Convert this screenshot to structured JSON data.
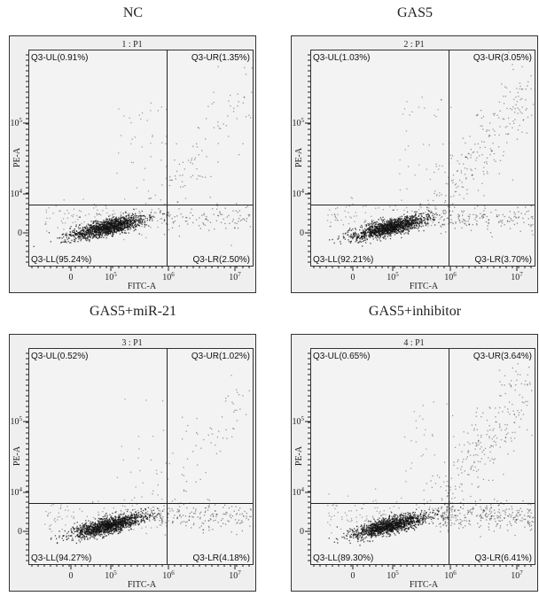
{
  "chart_data": [
    {
      "type": "scatter",
      "title": "NC",
      "subtitle": "1 : P1",
      "xlabel": "FITC-A",
      "ylabel": "PE-A",
      "x_tick_labels": [
        "0",
        "10^5",
        "10^6",
        "10^7"
      ],
      "y_tick_labels": [
        "0",
        "10^4",
        "10^5"
      ],
      "quadrants": {
        "UL": "Q3-UL(0.91%)",
        "UR": "Q3-UR(1.35%)",
        "LL": "Q3-LL(95.24%)",
        "LR": "Q3-LR(2.50%)"
      },
      "percentages": {
        "UL": 0.91,
        "UR": 1.35,
        "LL": 95.24,
        "LR": 2.5
      }
    },
    {
      "type": "scatter",
      "title": "GAS5",
      "subtitle": "2 : P1",
      "xlabel": "FITC-A",
      "ylabel": "PE-A",
      "x_tick_labels": [
        "0",
        "10^5",
        "10^6",
        "10^7"
      ],
      "y_tick_labels": [
        "0",
        "10^4",
        "10^5"
      ],
      "quadrants": {
        "UL": "Q3-UL(1.03%)",
        "UR": "Q3-UR(3.05%)",
        "LL": "Q3-LL(92.21%)",
        "LR": "Q3-LR(3.70%)"
      },
      "percentages": {
        "UL": 1.03,
        "UR": 3.05,
        "LL": 92.21,
        "LR": 3.7
      }
    },
    {
      "type": "scatter",
      "title": "GAS5+miR-21",
      "subtitle": "3 : P1",
      "xlabel": "FITC-A",
      "ylabel": "PE-A",
      "x_tick_labels": [
        "0",
        "10^5",
        "10^6",
        "10^7"
      ],
      "y_tick_labels": [
        "0",
        "10^4",
        "10^5"
      ],
      "quadrants": {
        "UL": "Q3-UL(0.52%)",
        "UR": "Q3-UR(1.02%)",
        "LL": "Q3-LL(94.27%)",
        "LR": "Q3-LR(4.18%)"
      },
      "percentages": {
        "UL": 0.52,
        "UR": 1.02,
        "LL": 94.27,
        "LR": 4.18
      }
    },
    {
      "type": "scatter",
      "title": "GAS5+inhibitor",
      "subtitle": "4 : P1",
      "xlabel": "FITC-A",
      "ylabel": "PE-A",
      "x_tick_labels": [
        "0",
        "10^5",
        "10^6",
        "10^7"
      ],
      "y_tick_labels": [
        "0",
        "10^4",
        "10^5"
      ],
      "quadrants": {
        "UL": "Q3-UL(0.65%)",
        "UR": "Q3-UR(3.64%)",
        "LL": "Q3-LL(89.30%)",
        "LR": "Q3-LR(6.41%)"
      },
      "percentages": {
        "UL": 0.65,
        "UR": 3.64,
        "LL": 89.3,
        "LR": 6.41
      }
    }
  ]
}
